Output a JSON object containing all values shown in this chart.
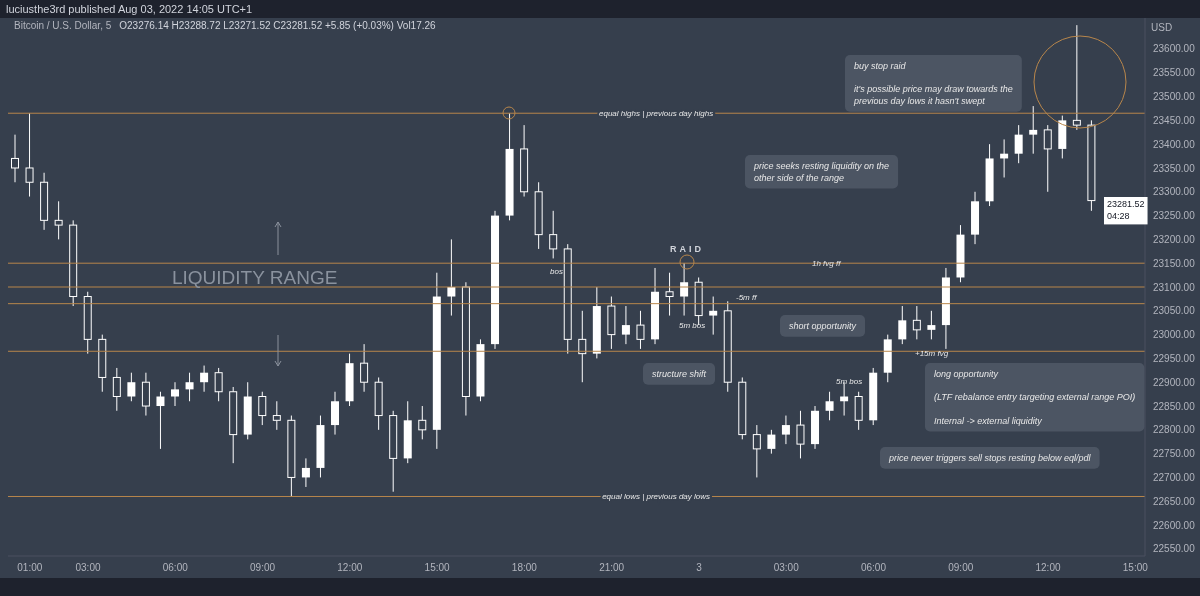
{
  "chart_data": {
    "type": "candlestick",
    "title": "Bitcoin / U.S. Dollar, 5",
    "subtitle": "O23276.14 H23288.72 L23271.52 C23281.52 +5.85 (+0.03%) Vol17.26",
    "ylabel": "USD",
    "color": "#ffffff",
    "x": [
      "2022-08-02T00:30",
      "2022-08-02T01:00",
      "2022-08-02T01:30",
      "2022-08-02T02:00",
      "2022-08-02T02:30",
      "2022-08-02T03:00",
      "2022-08-02T03:30",
      "2022-08-02T04:00",
      "2022-08-02T04:30",
      "2022-08-02T05:00",
      "2022-08-02T05:30",
      "2022-08-02T06:00",
      "2022-08-02T06:30",
      "2022-08-02T07:00",
      "2022-08-02T07:30",
      "2022-08-02T08:00",
      "2022-08-02T08:30",
      "2022-08-02T09:00",
      "2022-08-02T09:30",
      "2022-08-02T10:00",
      "2022-08-02T10:30",
      "2022-08-02T11:00",
      "2022-08-02T11:30",
      "2022-08-02T12:00",
      "2022-08-02T12:30",
      "2022-08-02T13:00",
      "2022-08-02T13:30",
      "2022-08-02T14:00",
      "2022-08-02T14:30",
      "2022-08-02T15:00",
      "2022-08-02T15:30",
      "2022-08-02T16:00",
      "2022-08-02T16:30",
      "2022-08-02T17:00",
      "2022-08-02T17:30",
      "2022-08-02T18:00",
      "2022-08-02T18:30",
      "2022-08-02T19:00",
      "2022-08-02T19:30",
      "2022-08-02T20:00",
      "2022-08-02T20:30",
      "2022-08-02T21:00",
      "2022-08-02T21:30",
      "2022-08-02T22:00",
      "2022-08-02T22:30",
      "2022-08-02T23:00",
      "2022-08-02T23:30",
      "2022-08-03T00:00",
      "2022-08-03T00:30",
      "2022-08-03T01:00",
      "2022-08-03T01:30",
      "2022-08-03T02:00",
      "2022-08-03T02:30",
      "2022-08-03T03:00",
      "2022-08-03T03:30",
      "2022-08-03T04:00",
      "2022-08-03T04:30",
      "2022-08-03T05:00",
      "2022-08-03T05:30",
      "2022-08-03T06:00",
      "2022-08-03T06:30",
      "2022-08-03T07:00",
      "2022-08-03T07:30",
      "2022-08-03T08:00",
      "2022-08-03T08:30",
      "2022-08-03T09:00",
      "2022-08-03T09:30",
      "2022-08-03T10:00",
      "2022-08-03T10:30",
      "2022-08-03T11:00",
      "2022-08-03T11:30",
      "2022-08-03T12:00",
      "2022-08-03T12:30",
      "2022-08-03T13:00",
      "2022-08-03T13:30"
    ],
    "ohlc": [
      [
        23370,
        23420,
        23320,
        23350
      ],
      [
        23350,
        23465,
        23290,
        23320
      ],
      [
        23320,
        23340,
        23220,
        23240
      ],
      [
        23240,
        23280,
        23200,
        23230
      ],
      [
        23230,
        23240,
        23060,
        23080
      ],
      [
        23080,
        23090,
        22960,
        22990
      ],
      [
        22990,
        23000,
        22880,
        22910
      ],
      [
        22910,
        22930,
        22840,
        22870
      ],
      [
        22870,
        22920,
        22860,
        22900
      ],
      [
        22900,
        22920,
        22830,
        22850
      ],
      [
        22850,
        22880,
        22760,
        22870
      ],
      [
        22870,
        22900,
        22850,
        22885
      ],
      [
        22885,
        22920,
        22860,
        22900
      ],
      [
        22900,
        22935,
        22880,
        22920
      ],
      [
        22920,
        22930,
        22860,
        22880
      ],
      [
        22880,
        22890,
        22730,
        22790
      ],
      [
        22790,
        22900,
        22780,
        22870
      ],
      [
        22870,
        22880,
        22810,
        22830
      ],
      [
        22830,
        22860,
        22800,
        22820
      ],
      [
        22820,
        22830,
        22660,
        22700
      ],
      [
        22700,
        22740,
        22680,
        22720
      ],
      [
        22720,
        22830,
        22700,
        22810
      ],
      [
        22810,
        22880,
        22790,
        22860
      ],
      [
        22860,
        22960,
        22850,
        22940
      ],
      [
        22940,
        22980,
        22880,
        22900
      ],
      [
        22900,
        22910,
        22800,
        22830
      ],
      [
        22830,
        22840,
        22670,
        22740
      ],
      [
        22740,
        22860,
        22730,
        22820
      ],
      [
        22820,
        22850,
        22780,
        22800
      ],
      [
        22800,
        23130,
        22760,
        23080
      ],
      [
        23080,
        23200,
        23040,
        23100
      ],
      [
        23100,
        23110,
        22830,
        22870
      ],
      [
        22870,
        22990,
        22860,
        22980
      ],
      [
        22980,
        23260,
        22970,
        23250
      ],
      [
        23250,
        23465,
        23240,
        23390
      ],
      [
        23390,
        23440,
        23290,
        23300
      ],
      [
        23300,
        23320,
        23180,
        23210
      ],
      [
        23210,
        23260,
        23160,
        23180
      ],
      [
        23180,
        23190,
        22960,
        22990
      ],
      [
        22990,
        23050,
        22900,
        22960
      ],
      [
        22960,
        23100,
        22950,
        23060
      ],
      [
        23060,
        23080,
        22970,
        23000
      ],
      [
        23000,
        23060,
        22980,
        23020
      ],
      [
        23020,
        23050,
        22970,
        22990
      ],
      [
        22990,
        23140,
        22980,
        23090
      ],
      [
        23090,
        23130,
        23040,
        23080
      ],
      [
        23080,
        23150,
        23040,
        23110
      ],
      [
        23110,
        23120,
        23020,
        23040
      ],
      [
        23040,
        23080,
        23000,
        23050
      ],
      [
        23050,
        23070,
        22880,
        22900
      ],
      [
        22900,
        22910,
        22780,
        22790
      ],
      [
        22790,
        22810,
        22700,
        22760
      ],
      [
        22760,
        22800,
        22750,
        22790
      ],
      [
        22790,
        22830,
        22770,
        22810
      ],
      [
        22810,
        22840,
        22740,
        22770
      ],
      [
        22770,
        22850,
        22760,
        22840
      ],
      [
        22840,
        22880,
        22820,
        22860
      ],
      [
        22860,
        22900,
        22830,
        22870
      ],
      [
        22870,
        22880,
        22800,
        22820
      ],
      [
        22820,
        22930,
        22810,
        22920
      ],
      [
        22920,
        23000,
        22900,
        22990
      ],
      [
        22990,
        23060,
        22980,
        23030
      ],
      [
        23030,
        23060,
        22990,
        23010
      ],
      [
        23010,
        23050,
        22990,
        23020
      ],
      [
        23020,
        23140,
        22970,
        23120
      ],
      [
        23120,
        23230,
        23110,
        23210
      ],
      [
        23210,
        23300,
        23190,
        23280
      ],
      [
        23280,
        23400,
        23270,
        23370
      ],
      [
        23370,
        23410,
        23330,
        23380
      ],
      [
        23380,
        23440,
        23360,
        23420
      ],
      [
        23420,
        23480,
        23380,
        23430
      ],
      [
        23430,
        23440,
        23300,
        23390
      ],
      [
        23390,
        23460,
        23370,
        23450
      ],
      [
        23450,
        23650,
        23430,
        23440
      ],
      [
        23440,
        23450,
        23260,
        23281.52
      ]
    ],
    "xlim": [
      "2022-08-02T00:15",
      "2022-08-03T15:20"
    ],
    "xticks": [
      {
        "value": "2022-08-02T01:00",
        "label": "01:00"
      },
      {
        "value": "2022-08-02T03:00",
        "label": "03:00"
      },
      {
        "value": "2022-08-02T06:00",
        "label": "06:00"
      },
      {
        "value": "2022-08-02T09:00",
        "label": "09:00"
      },
      {
        "value": "2022-08-02T12:00",
        "label": "12:00"
      },
      {
        "value": "2022-08-02T15:00",
        "label": "15:00"
      },
      {
        "value": "2022-08-02T18:00",
        "label": "18:00"
      },
      {
        "value": "2022-08-02T21:00",
        "label": "21:00"
      },
      {
        "value": "2022-08-03T00:00",
        "label": "3"
      },
      {
        "value": "2022-08-03T03:00",
        "label": "03:00"
      },
      {
        "value": "2022-08-03T06:00",
        "label": "06:00"
      },
      {
        "value": "2022-08-03T09:00",
        "label": "09:00"
      },
      {
        "value": "2022-08-03T12:00",
        "label": "12:00"
      },
      {
        "value": "2022-08-03T15:00",
        "label": "15:00"
      }
    ],
    "ylim": [
      22535,
      23665
    ],
    "yticks": [
      {
        "value": 22550,
        "label": "22550.00"
      },
      {
        "value": 22600,
        "label": "22600.00"
      },
      {
        "value": 22650,
        "label": "22650.00"
      },
      {
        "value": 22700,
        "label": "22700.00"
      },
      {
        "value": 22750,
        "label": "22750.00"
      },
      {
        "value": 22800,
        "label": "22800.00"
      },
      {
        "value": 22850,
        "label": "22850.00"
      },
      {
        "value": 22900,
        "label": "22900.00"
      },
      {
        "value": 22950,
        "label": "22950.00"
      },
      {
        "value": 23000,
        "label": "23000.00"
      },
      {
        "value": 23050,
        "label": "23050.00"
      },
      {
        "value": 23100,
        "label": "23100.00"
      },
      {
        "value": 23150,
        "label": "23150.00"
      },
      {
        "value": 23200,
        "label": "23200.00"
      },
      {
        "value": 23250,
        "label": "23250.00"
      },
      {
        "value": 23300,
        "label": "23300.00"
      },
      {
        "value": 23350,
        "label": "23350.00"
      },
      {
        "value": 23400,
        "label": "23400.00"
      },
      {
        "value": 23450,
        "label": "23450.00"
      },
      {
        "value": 23500,
        "label": "23500.00"
      },
      {
        "value": 23550,
        "label": "23550.00"
      },
      {
        "value": 23600,
        "label": "23600.00"
      }
    ],
    "ref_lines": [
      {
        "axis": "y",
        "value": 23465,
        "label": "equal highs | previous day highs",
        "color": "#b8864b"
      },
      {
        "axis": "y",
        "value": 22660,
        "label": "equal lows | previous day lows",
        "color": "#b8864b"
      },
      {
        "axis": "y",
        "value": 23150,
        "color": "#b8864b"
      },
      {
        "axis": "y",
        "value": 23100,
        "color": "#b8864b"
      },
      {
        "axis": "y",
        "value": 23065,
        "color": "#b8864b"
      },
      {
        "axis": "y",
        "value": 22965,
        "color": "#b8864b"
      }
    ],
    "annotations": [
      "luciusthe3rd published Aug 03, 2022 14:05 UTC+1",
      "23281.52\n04:28",
      "LIQUIDITY RANGE",
      "buy stop raid\n\nit's possible price may draw towards the\nprevious day lows it hasn't swept",
      "price seeks resting liquidity on the\nother side of the range",
      "RAID",
      "short opportunity",
      "structure shift",
      "5m bos",
      "long opportunity\n\n(LTF rebalance entry targeting external range POI)\n\nInternal -> external liquidity",
      "5m bos",
      "+15m fvg",
      "1h fvg ff",
      "-5m ff",
      "bos",
      "price never triggers sell stops resting below eql/pdl"
    ]
  }
}
